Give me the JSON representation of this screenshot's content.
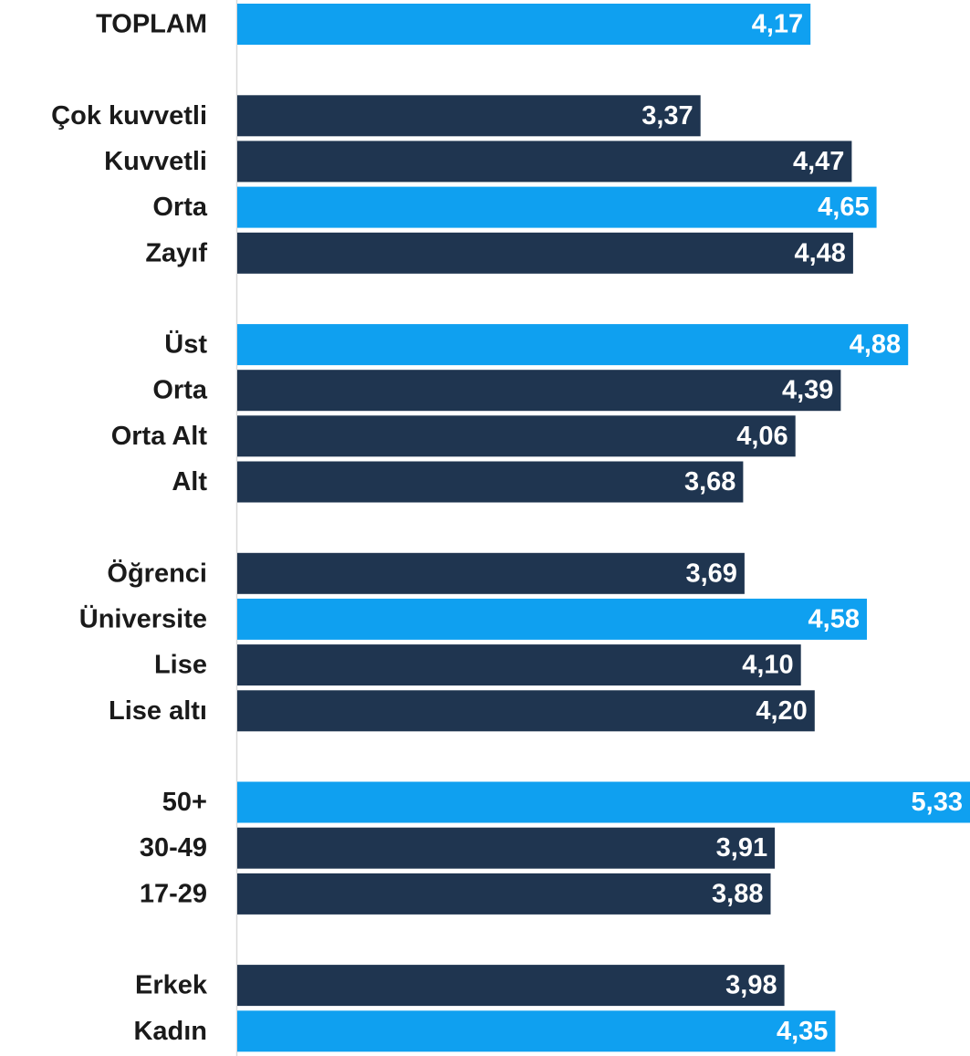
{
  "chart_data": {
    "type": "bar",
    "orientation": "horizontal",
    "title": "",
    "xlabel": "",
    "ylabel": "",
    "xlim": [
      0,
      5.33
    ],
    "grid": false,
    "legend": "none",
    "colors": {
      "highlight": "#0fa0f0",
      "default": "#1f3550",
      "axis": "#d9d9d9",
      "label": "#1a1a1a",
      "value_text": "#ffffff"
    },
    "groups": [
      {
        "rows": [
          {
            "label": "TOPLAM",
            "value": 4.17,
            "display": "4,17",
            "highlight": true
          }
        ]
      },
      {
        "rows": [
          {
            "label": "Çok kuvvetli",
            "value": 3.37,
            "display": "3,37",
            "highlight": false
          },
          {
            "label": "Kuvvetli",
            "value": 4.47,
            "display": "4,47",
            "highlight": false
          },
          {
            "label": "Orta",
            "value": 4.65,
            "display": "4,65",
            "highlight": true
          },
          {
            "label": "Zayıf",
            "value": 4.48,
            "display": "4,48",
            "highlight": false
          }
        ]
      },
      {
        "rows": [
          {
            "label": "Üst",
            "value": 4.88,
            "display": "4,88",
            "highlight": true
          },
          {
            "label": "Orta",
            "value": 4.39,
            "display": "4,39",
            "highlight": false
          },
          {
            "label": "Orta Alt",
            "value": 4.06,
            "display": "4,06",
            "highlight": false
          },
          {
            "label": "Alt",
            "value": 3.68,
            "display": "3,68",
            "highlight": false
          }
        ]
      },
      {
        "rows": [
          {
            "label": "Öğrenci",
            "value": 3.69,
            "display": "3,69",
            "highlight": false
          },
          {
            "label": "Üniversite",
            "value": 4.58,
            "display": "4,58",
            "highlight": true
          },
          {
            "label": "Lise",
            "value": 4.1,
            "display": "4,10",
            "highlight": false
          },
          {
            "label": "Lise altı",
            "value": 4.2,
            "display": "4,20",
            "highlight": false
          }
        ]
      },
      {
        "rows": [
          {
            "label": "50+",
            "value": 5.33,
            "display": "5,33",
            "highlight": true
          },
          {
            "label": "30-49",
            "value": 3.91,
            "display": "3,91",
            "highlight": false
          },
          {
            "label": "17-29",
            "value": 3.88,
            "display": "3,88",
            "highlight": false
          }
        ]
      },
      {
        "rows": [
          {
            "label": "Erkek",
            "value": 3.98,
            "display": "3,98",
            "highlight": false
          },
          {
            "label": "Kadın",
            "value": 4.35,
            "display": "4,35",
            "highlight": true
          }
        ]
      }
    ]
  }
}
